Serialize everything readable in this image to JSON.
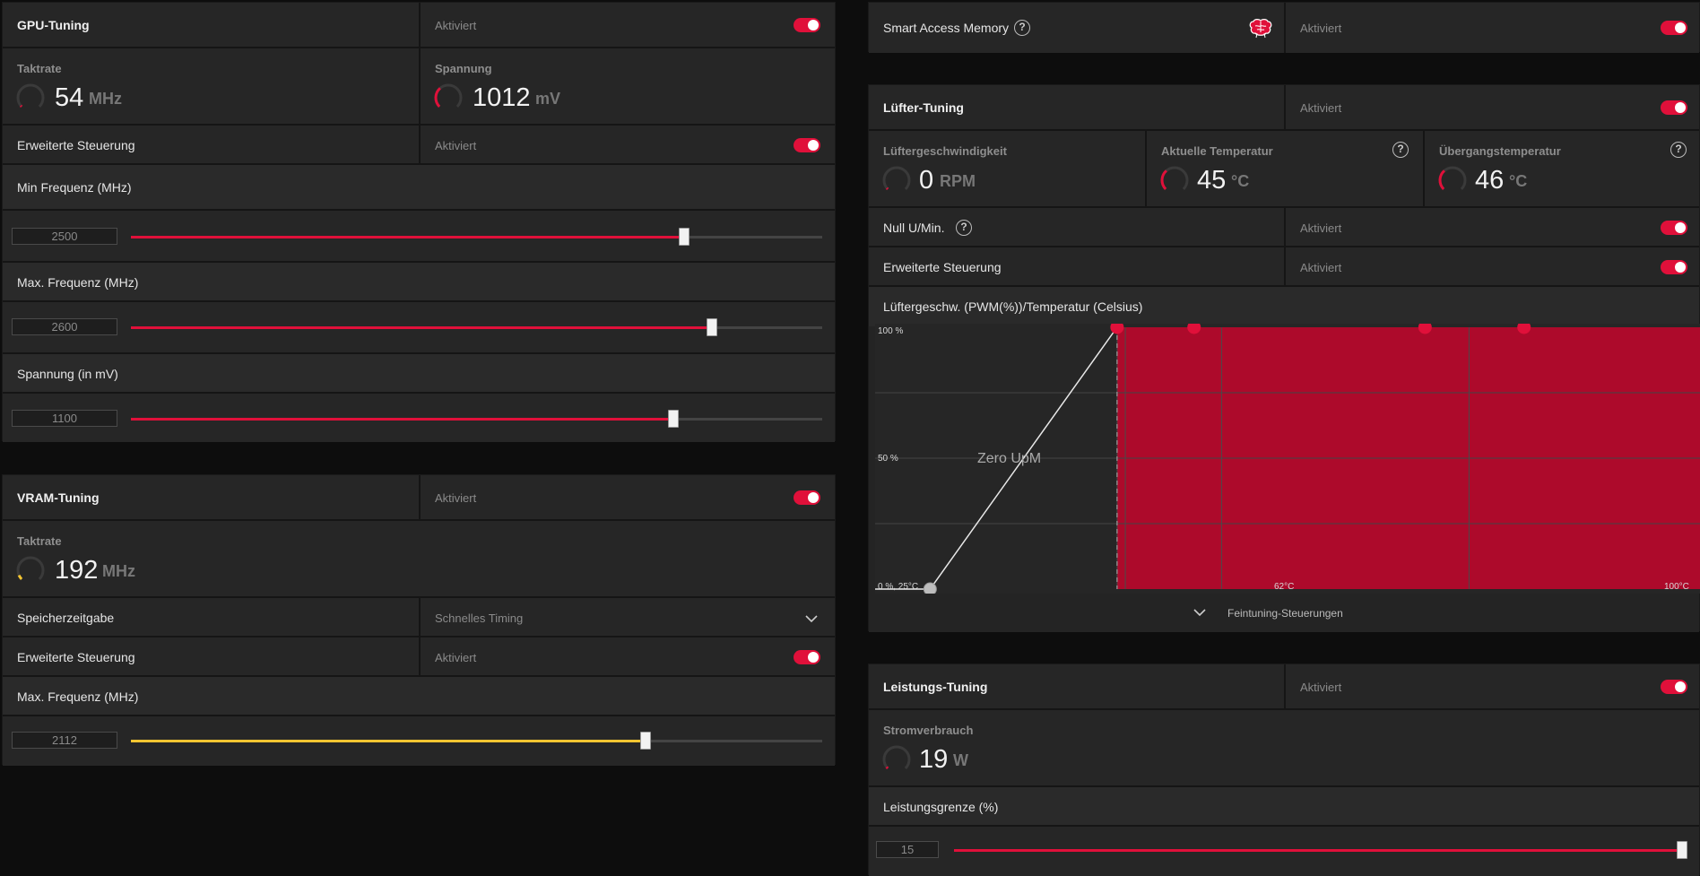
{
  "gpu_tuning": {
    "title": "GPU-Tuning",
    "status": "Aktiviert",
    "clock": {
      "label": "Taktrate",
      "value": "54",
      "unit": "MHz",
      "gauge_fraction": 0.02
    },
    "voltage": {
      "label": "Spannung",
      "value": "1012",
      "unit": "mV",
      "gauge_fraction": 0.35
    },
    "advanced": {
      "label": "Erweiterte Steuerung",
      "status": "Aktiviert"
    },
    "min_freq": {
      "label": "Min Frequenz (MHz)",
      "value": "2500",
      "fraction": 0.8
    },
    "max_freq": {
      "label": "Max. Frequenz (MHz)",
      "value": "2600",
      "fraction": 0.84
    },
    "voltage_setting": {
      "label": "Spannung (in mV)",
      "value": "1100",
      "fraction": 0.785
    }
  },
  "vram_tuning": {
    "title": "VRAM-Tuning",
    "status": "Aktiviert",
    "clock": {
      "label": "Taktrate",
      "value": "192",
      "unit": "MHz",
      "gauge_fraction": 0.08
    },
    "memory_timing": {
      "label": "Speicherzeitgabe",
      "value": "Schnelles Timing"
    },
    "advanced": {
      "label": "Erweiterte Steuerung",
      "status": "Aktiviert"
    },
    "max_freq": {
      "label": "Max. Frequenz (MHz)",
      "value": "2112",
      "fraction": 0.745
    }
  },
  "smart_access_memory": {
    "label": "Smart Access Memory",
    "status": "Aktiviert",
    "help": "?"
  },
  "fan_tuning": {
    "title": "Lüfter-Tuning",
    "status": "Aktiviert",
    "fan_speed": {
      "label": "Lüftergeschwindigkeit",
      "value": "0",
      "unit": "RPM",
      "gauge_fraction": 0.0
    },
    "current_temp": {
      "label": "Aktuelle Temperatur",
      "value": "45",
      "unit": "°C",
      "gauge_fraction": 0.35
    },
    "junction_temp": {
      "label": "Übergangstemperatur",
      "value": "46",
      "unit": "°C",
      "gauge_fraction": 0.35
    },
    "zero_rpm": {
      "label": "Null U/Min.",
      "status": "Aktiviert"
    },
    "advanced": {
      "label": "Erweiterte Steuerung",
      "status": "Aktiviert"
    },
    "curve_title": "Lüftergeschw. (PWM(%))/Temperatur (Celsius)",
    "fine_tuning": "Feintuning-Steuerungen"
  },
  "chart_data": {
    "type": "line",
    "title": "Lüftergeschw. (PWM(%))/Temperatur (Celsius)",
    "y_tick_labels": [
      "100 %",
      "50 %"
    ],
    "x_tick_labels": [
      "0 %, 25°C",
      "62°C",
      "100°C"
    ],
    "annotation": "Zero UpM",
    "xlim": [
      25,
      100
    ],
    "ylim": [
      0,
      100
    ],
    "curve_points": [
      {
        "x": 25,
        "y": 0
      },
      {
        "x": 30,
        "y": 0
      },
      {
        "x": 47,
        "y": 100
      },
      {
        "x": 54,
        "y": 100
      },
      {
        "x": 75,
        "y": 100
      },
      {
        "x": 84,
        "y": 100
      }
    ],
    "zero_rpm_boundary_x": 47,
    "grid": true
  },
  "power_tuning": {
    "title": "Leistungs-Tuning",
    "status": "Aktiviert",
    "power": {
      "label": "Stromverbrauch",
      "value": "19",
      "unit": "W",
      "gauge_fraction": 0.03
    },
    "limit": {
      "label": "Leistungsgrenze (%)",
      "value": "15",
      "fraction": 1.0
    }
  },
  "colors": {
    "accent": "#e0103a",
    "chart_fill": "#ad0a2b",
    "vram_accent": "#f5c531"
  }
}
